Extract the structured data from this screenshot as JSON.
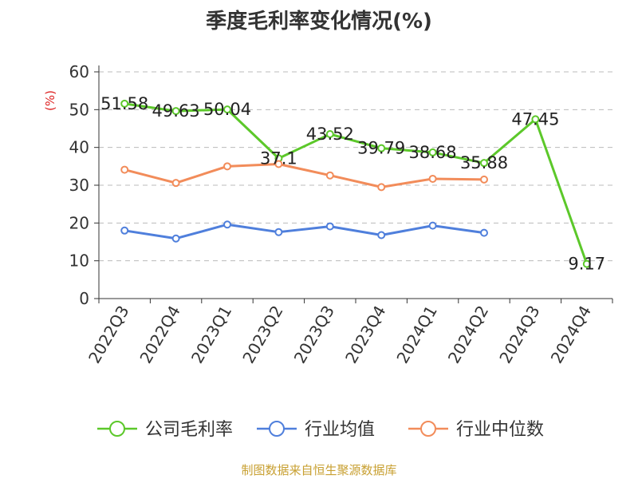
{
  "title": "季度毛利率变化情况(%)",
  "source": "制图数据来自恒生聚源数据库",
  "chart_data": {
    "type": "line",
    "title": "季度毛利率变化情况(%)",
    "ylabel": "(%)",
    "ylim": [
      0,
      60
    ],
    "yticks": [
      0,
      10,
      20,
      30,
      40,
      50,
      60
    ],
    "grid": true,
    "legend_position": "bottom",
    "categories": [
      "2022Q3",
      "2022Q4",
      "2023Q1",
      "2023Q2",
      "2023Q3",
      "2023Q4",
      "2024Q1",
      "2024Q2",
      "2024Q3",
      "2024Q4"
    ],
    "series": [
      {
        "name": "公司毛利率",
        "color": "#5cc82a",
        "show_labels": true,
        "values": [
          51.58,
          49.63,
          50.04,
          37.1,
          43.52,
          39.79,
          38.68,
          35.88,
          47.45,
          9.17
        ],
        "labels": [
          "51.58",
          "49.63",
          "50.04",
          "37.1",
          "43.52",
          "39.79",
          "38.68",
          "35.88",
          "47.45",
          "9.17"
        ]
      },
      {
        "name": "行业均值",
        "color": "#4f7fdc",
        "show_labels": false,
        "values": [
          18.0,
          15.9,
          19.6,
          17.6,
          19.1,
          16.8,
          19.3,
          17.4,
          null,
          null
        ]
      },
      {
        "name": "行业中位数",
        "color": "#f28c5a",
        "show_labels": false,
        "values": [
          34.1,
          30.6,
          35.0,
          35.6,
          32.6,
          29.5,
          31.7,
          31.5,
          null,
          null
        ]
      }
    ]
  }
}
